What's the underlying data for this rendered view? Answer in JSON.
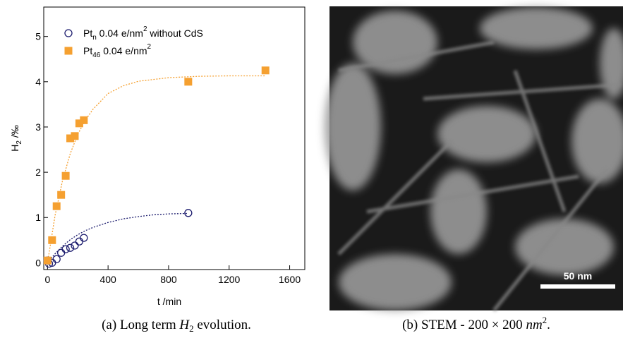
{
  "chart_data": {
    "type": "scatter",
    "y_label": [
      "H",
      "2",
      " /‰"
    ],
    "x_label": "t /min",
    "xlim": [
      -25,
      1700
    ],
    "xticks": [
      0,
      400,
      800,
      1200,
      1600
    ],
    "ylim": [
      -0.15,
      5.65
    ],
    "yticks": [
      0,
      1,
      2,
      3,
      4,
      5
    ],
    "series": [
      {
        "name": [
          "Pt",
          "n",
          "  0.04 e/nm",
          "2",
          " without CdS"
        ],
        "color": "#1c1c6e",
        "marker": "circle",
        "x": [
          0,
          10,
          30,
          60,
          90,
          120,
          150,
          180,
          210,
          240,
          930
        ],
        "values": [
          0.05,
          -0.02,
          0.0,
          0.08,
          0.22,
          0.3,
          0.33,
          0.38,
          0.47,
          0.55,
          1.1
        ]
      },
      {
        "name": [
          "Pt",
          "46",
          " 0.04 e/nm",
          "2"
        ],
        "color": "#f5a030",
        "marker": "square",
        "x": [
          0,
          30,
          60,
          90,
          120,
          150,
          180,
          210,
          240,
          930,
          1440
        ],
        "values": [
          0.05,
          0.5,
          1.25,
          1.5,
          1.92,
          2.75,
          2.8,
          3.08,
          3.15,
          4.0,
          4.25
        ]
      }
    ],
    "fits": [
      {
        "color": "#1c1c6e",
        "x": [
          0,
          50,
          100,
          150,
          200,
          250,
          300,
          400,
          500,
          600,
          700,
          800,
          930
        ],
        "values": [
          0,
          0.2,
          0.37,
          0.51,
          0.62,
          0.71,
          0.78,
          0.89,
          0.97,
          1.02,
          1.06,
          1.08,
          1.09
        ]
      },
      {
        "color": "#f5a030",
        "x": [
          0,
          50,
          100,
          150,
          200,
          250,
          300,
          400,
          500,
          600,
          800,
          1000,
          1200,
          1440
        ],
        "values": [
          0,
          1.05,
          1.83,
          2.41,
          2.84,
          3.15,
          3.39,
          3.74,
          3.91,
          4.01,
          4.09,
          4.12,
          4.13,
          4.13
        ]
      }
    ]
  },
  "captions": [
    [
      "(a) Long term ",
      "H",
      "2",
      " evolution."
    ],
    [
      "(b) STEM - 200 × 200 ",
      "nm",
      "2",
      "."
    ]
  ],
  "image": {
    "scale_bar": "50 nm"
  }
}
